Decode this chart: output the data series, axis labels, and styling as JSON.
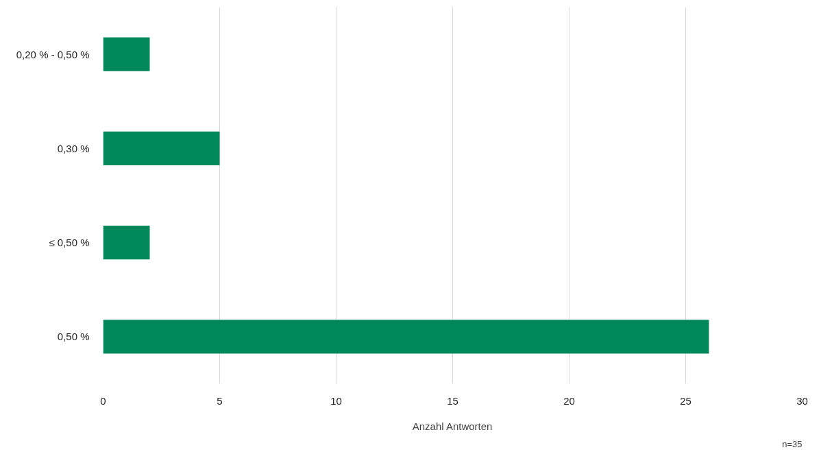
{
  "chart_data": {
    "type": "bar",
    "orientation": "horizontal",
    "categories": [
      "0,20 % - 0,50 %",
      "0,30 %",
      "≤ 0,50 %",
      "0,50 %"
    ],
    "values": [
      2,
      5,
      2,
      26
    ],
    "color": "#00875a",
    "xlabel": "Anzahl Antworten",
    "xlim": [
      0,
      30
    ],
    "xticks": [
      0,
      5,
      10,
      15,
      20,
      25,
      30
    ],
    "grid": "x",
    "annotations": [
      "n=35"
    ]
  }
}
